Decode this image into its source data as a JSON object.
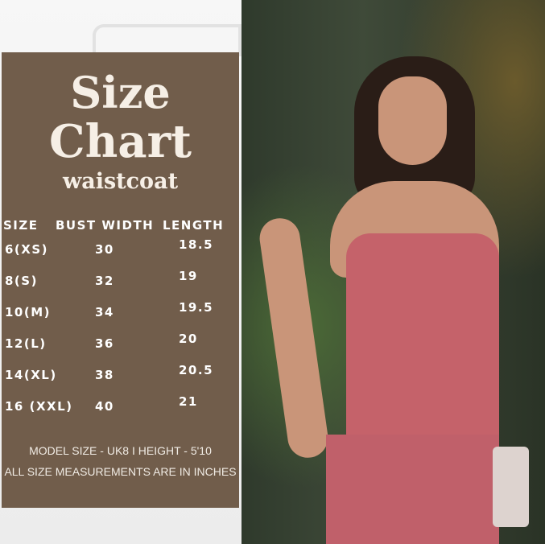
{
  "chart": {
    "title_line1": "Size",
    "title_line2": "Chart",
    "subtitle": "waistcoat",
    "headers": [
      "SIZE",
      "BUST WIDTH",
      "LENGTH"
    ],
    "rows": [
      [
        "6(XS)",
        "30",
        "18.5"
      ],
      [
        "8(S)",
        "32",
        "19"
      ],
      [
        "10(M)",
        "34",
        "19.5"
      ],
      [
        "12(L)",
        "36",
        "20"
      ],
      [
        "14(XL)",
        "38",
        "20.5"
      ],
      [
        "16 (XXL)",
        "40",
        "21"
      ]
    ],
    "model_note": "MODEL SIZE -  UK8   I    HEIGHT - 5'10",
    "units_note": "ALL SIZE MEASUREMENTS ARE IN INCHES"
  },
  "colors": {
    "panel": "#715d4b",
    "garment": "#c5626a"
  }
}
